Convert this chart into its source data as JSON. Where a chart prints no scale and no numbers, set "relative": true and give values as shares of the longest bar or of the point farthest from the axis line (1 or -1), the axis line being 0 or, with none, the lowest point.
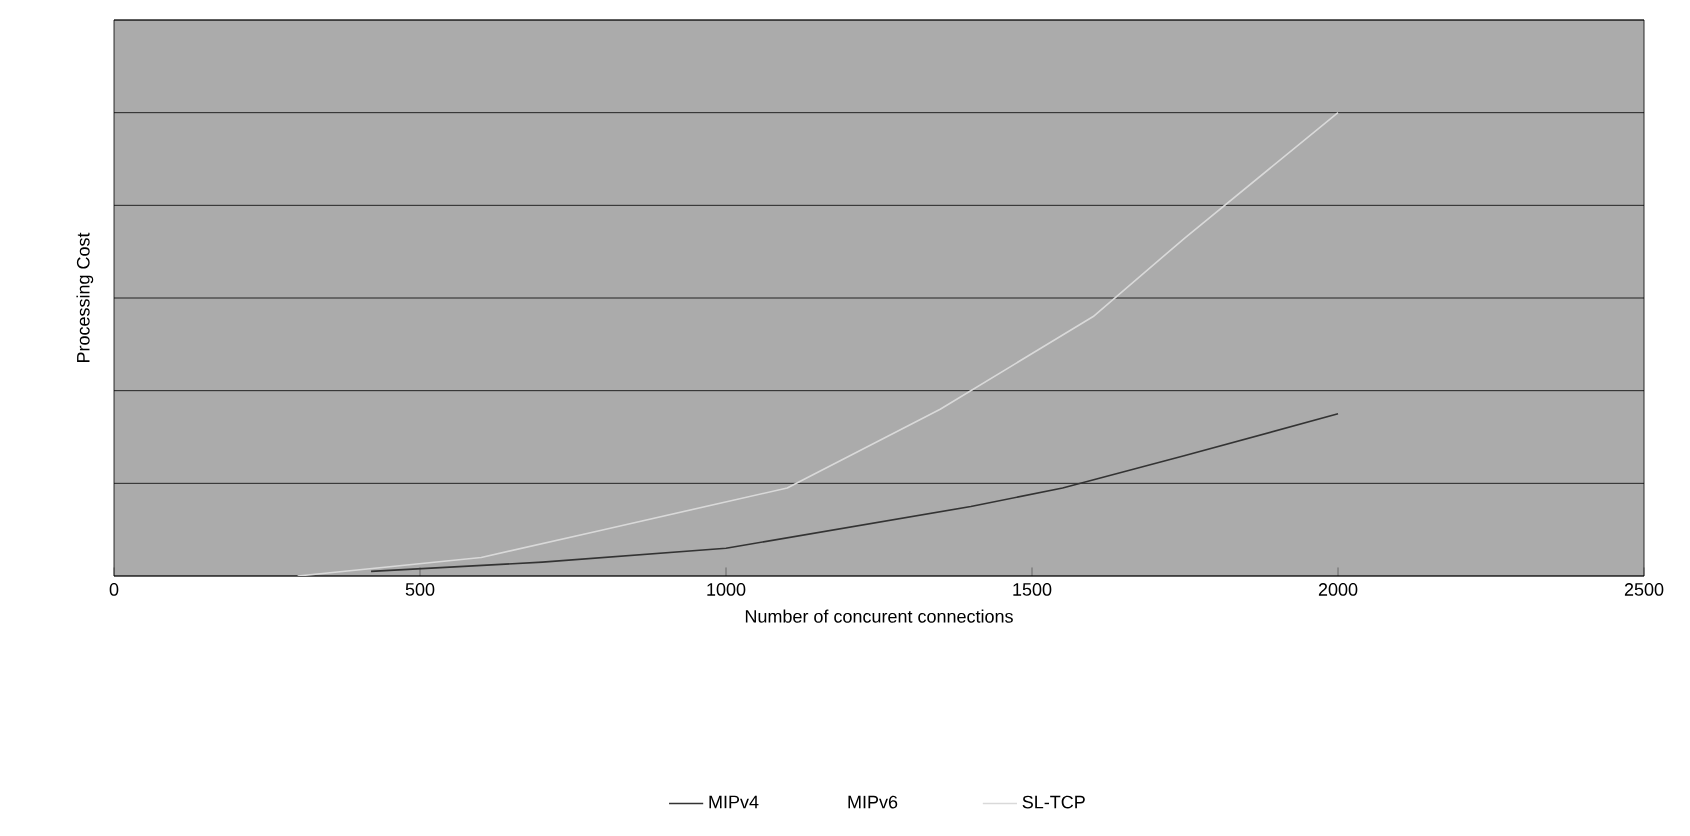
{
  "chart_data": {
    "type": "line",
    "xlabel": "Number of concurent connections",
    "ylabel": "Processing Cost",
    "relative": true,
    "xlim": [
      0,
      2500
    ],
    "xticks": [
      0,
      500,
      1000,
      1500,
      2000,
      2500
    ],
    "grid": "y",
    "legend": "bottom",
    "series": [
      {
        "name": "MIPv4",
        "color": "#333333",
        "x": [
          420,
          700,
          1000,
          1400,
          1550,
          1750,
          2000
        ],
        "values": [
          0.01,
          0.03,
          0.06,
          0.15,
          0.19,
          0.26,
          0.35
        ]
      },
      {
        "name": "MIPv6"
      },
      {
        "name": "SL-TCP",
        "color": "#d9d9d9",
        "x": [
          300,
          600,
          800,
          1100,
          1350,
          1600,
          1750,
          2000
        ],
        "values": [
          0,
          0.04,
          0.1,
          0.19,
          0.36,
          0.56,
          0.73,
          1
        ]
      }
    ]
  }
}
